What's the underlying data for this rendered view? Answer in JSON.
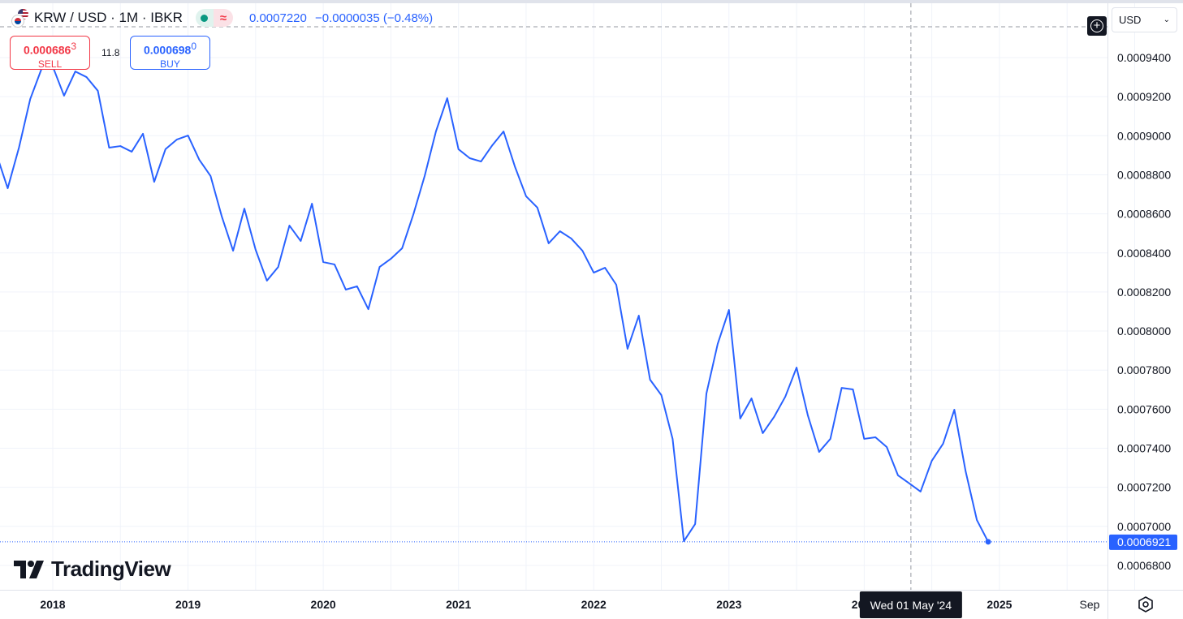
{
  "header": {
    "symbol": "KRW / USD · 1M · IBKR",
    "last_price": "0.0007220",
    "change": "−0.0000035 (−0.48%)",
    "status_icons": [
      "market-open-dot",
      "delayed-data-icon"
    ],
    "status_delayed_glyph": "≈"
  },
  "trade": {
    "sell_price": "0.000686",
    "sell_price_sup": "3",
    "sell_label": "SELL",
    "spread": "11.8",
    "buy_price": "0.000698",
    "buy_price_sup": "0",
    "buy_label": "BUY"
  },
  "currency_select": {
    "value": "USD"
  },
  "logo": "TradingView",
  "colors": {
    "line": "#2962ff",
    "sell": "#f23645",
    "buy": "#2962ff",
    "price_label_bg": "#2962ff"
  },
  "crosshair": {
    "date_label": "Wed 01 May '24"
  },
  "chart_data": {
    "type": "line",
    "title": "KRW / USD · 1M · IBKR",
    "xlabel": "",
    "ylabel": "",
    "ylim": [
      0.000668,
      0.000958
    ],
    "grid": true,
    "x_ticks": [
      "2018",
      "2019",
      "2020",
      "2021",
      "2022",
      "2023",
      "2024",
      "2025",
      "Sep"
    ],
    "y_ticks": [
      "0.0009400",
      "0.0009200",
      "0.0009000",
      "0.0008800",
      "0.0008600",
      "0.0008400",
      "0.0008200",
      "0.0008000",
      "0.0007800",
      "0.0007600",
      "0.0007400",
      "0.0007200",
      "0.0007000",
      "0.0006800"
    ],
    "last_value_label": "0.0006921",
    "start_month": "2017-08",
    "series": [
      {
        "values": [
          0.0008906,
          0.0008731,
          0.0008939,
          0.0009188,
          0.0009342,
          0.0009354,
          0.0009205,
          0.0009329,
          0.00093,
          0.000923,
          0.0008939,
          0.0008947,
          0.0008918,
          0.000901,
          0.0008764,
          0.0008931,
          0.000898,
          0.0009001,
          0.0008877,
          0.0008794,
          0.0008586,
          0.0008411,
          0.0008627,
          0.0008416,
          0.0008258,
          0.0008328,
          0.000854,
          0.0008461,
          0.0008652,
          0.0008353,
          0.0008341,
          0.0008212,
          0.0008229,
          0.0008112,
          0.0008328,
          0.000837,
          0.0008424,
          0.0008598,
          0.0008794,
          0.0009022,
          0.0009192,
          0.0008931,
          0.0008885,
          0.0008868,
          0.0008951,
          0.0009022,
          0.0008843,
          0.000869,
          0.0008632,
          0.0008449,
          0.0008511,
          0.0008474,
          0.0008411,
          0.0008299,
          0.0008324,
          0.0008237,
          0.0007909,
          0.0008079,
          0.0007751,
          0.0007672,
          0.0007448,
          0.0006924,
          0.0007012,
          0.000768,
          0.0007934,
          0.0008108,
          0.0007552,
          0.0007655,
          0.0007477,
          0.000756,
          0.0007664,
          0.0007813,
          0.0007568,
          0.0007381,
          0.0007448,
          0.0007709,
          0.0007701,
          0.0007448,
          0.0007456,
          0.0007406,
          0.0007261,
          0.000722,
          0.0007178,
          0.0007336,
          0.0007423,
          0.0007597,
          0.0007282,
          0.0007032,
          0.0006921
        ]
      }
    ]
  }
}
